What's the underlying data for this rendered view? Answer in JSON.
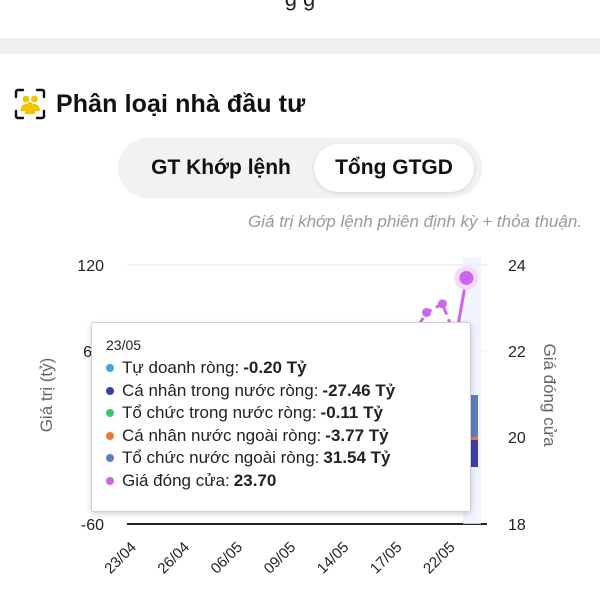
{
  "section": {
    "title": "Phân loại nhà đầu tư",
    "icon": "investor-group-icon"
  },
  "toggle": {
    "options": [
      "GT Khớp lệnh",
      "Tổng GTGD"
    ],
    "selected": "Tổng GTGD"
  },
  "note": "Giá trị khớp lệnh phiên định kỳ + thỏa thuận.",
  "colors": {
    "accent_yellow": "#f5c200",
    "price_line": "#cc66ee",
    "axis": "#222222"
  },
  "chart_data": {
    "type": "bar",
    "categories": [
      "23/04",
      "26/04",
      "06/05",
      "09/05",
      "14/05",
      "17/05",
      "22/05"
    ],
    "ylabel": "Giá trị (tỷ)",
    "y2label": "Giá đóng cửa",
    "ylim": [
      -60,
      120
    ],
    "y2lim": [
      18,
      24
    ],
    "y_ticks": [
      "120",
      "6",
      "-60"
    ],
    "y2_ticks": [
      "24",
      "22",
      "20",
      "18"
    ],
    "series_price": {
      "name": "Giá đóng cửa",
      "x_index": [
        5.2,
        5.45,
        5.75,
        6.0,
        6.2
      ],
      "values": [
        22.4,
        22.9,
        23.1,
        22.3,
        23.7
      ]
    },
    "tooltip": {
      "date": "23/05",
      "rows": [
        {
          "label": "Tự doanh ròng:",
          "value": "-0.20 Tỷ",
          "color": "#3aa8e0"
        },
        {
          "label": "Cá nhân trong nước ròng:",
          "value": "-27.46 Tỷ",
          "color": "#3b3fa8"
        },
        {
          "label": "Tổ chức trong nước ròng:",
          "value": "-0.11 Tỷ",
          "color": "#33cc66"
        },
        {
          "label": "Cá nhân nước ngoài ròng:",
          "value": "-3.77 Tỷ",
          "color": "#f07838"
        },
        {
          "label": "Tổ chức nước ngoài ròng:",
          "value": "31.54 Tỷ",
          "color": "#5b7fc0"
        },
        {
          "label": "Giá đóng cửa:",
          "value": "23.70",
          "color": "#cc66ee"
        }
      ]
    }
  },
  "top_text": "g g"
}
